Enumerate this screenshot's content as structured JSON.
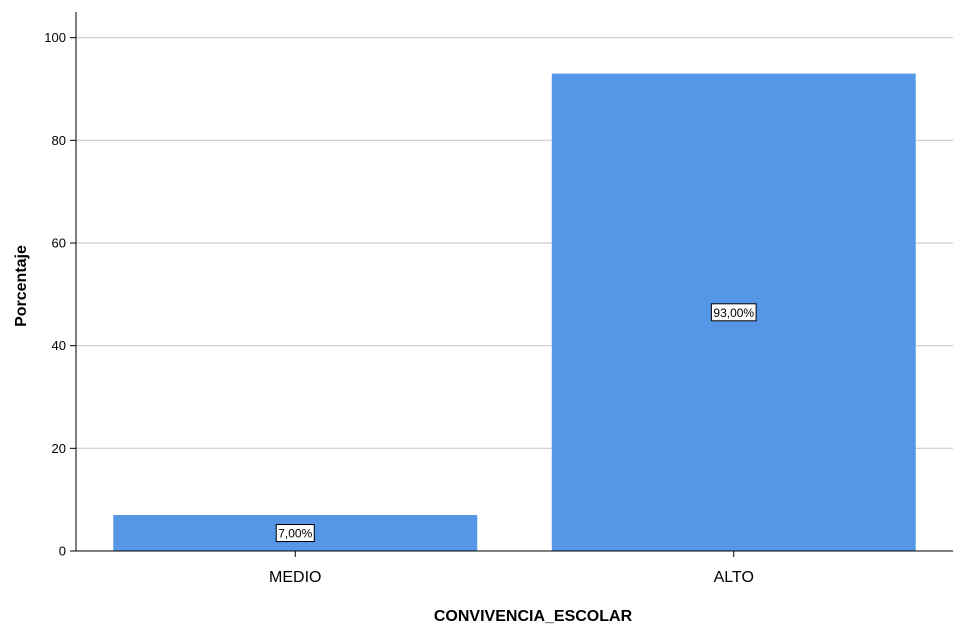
{
  "chart_data": {
    "type": "bar",
    "categories": [
      "MEDIO",
      "ALTO"
    ],
    "values": [
      7.0,
      93.0
    ],
    "data_labels": [
      "7,00%",
      "93,00%"
    ],
    "title": "",
    "xlabel": "CONVIVENCIA_ESCOLAR",
    "ylabel": "Porcentaje",
    "ylim": [
      0,
      105
    ],
    "yticks": [
      0,
      20,
      40,
      60,
      80,
      100
    ],
    "grid": true,
    "legend": "none"
  },
  "colors": {
    "bar": "#5596e6",
    "grid": "#cccccc",
    "axis": "#000000"
  }
}
